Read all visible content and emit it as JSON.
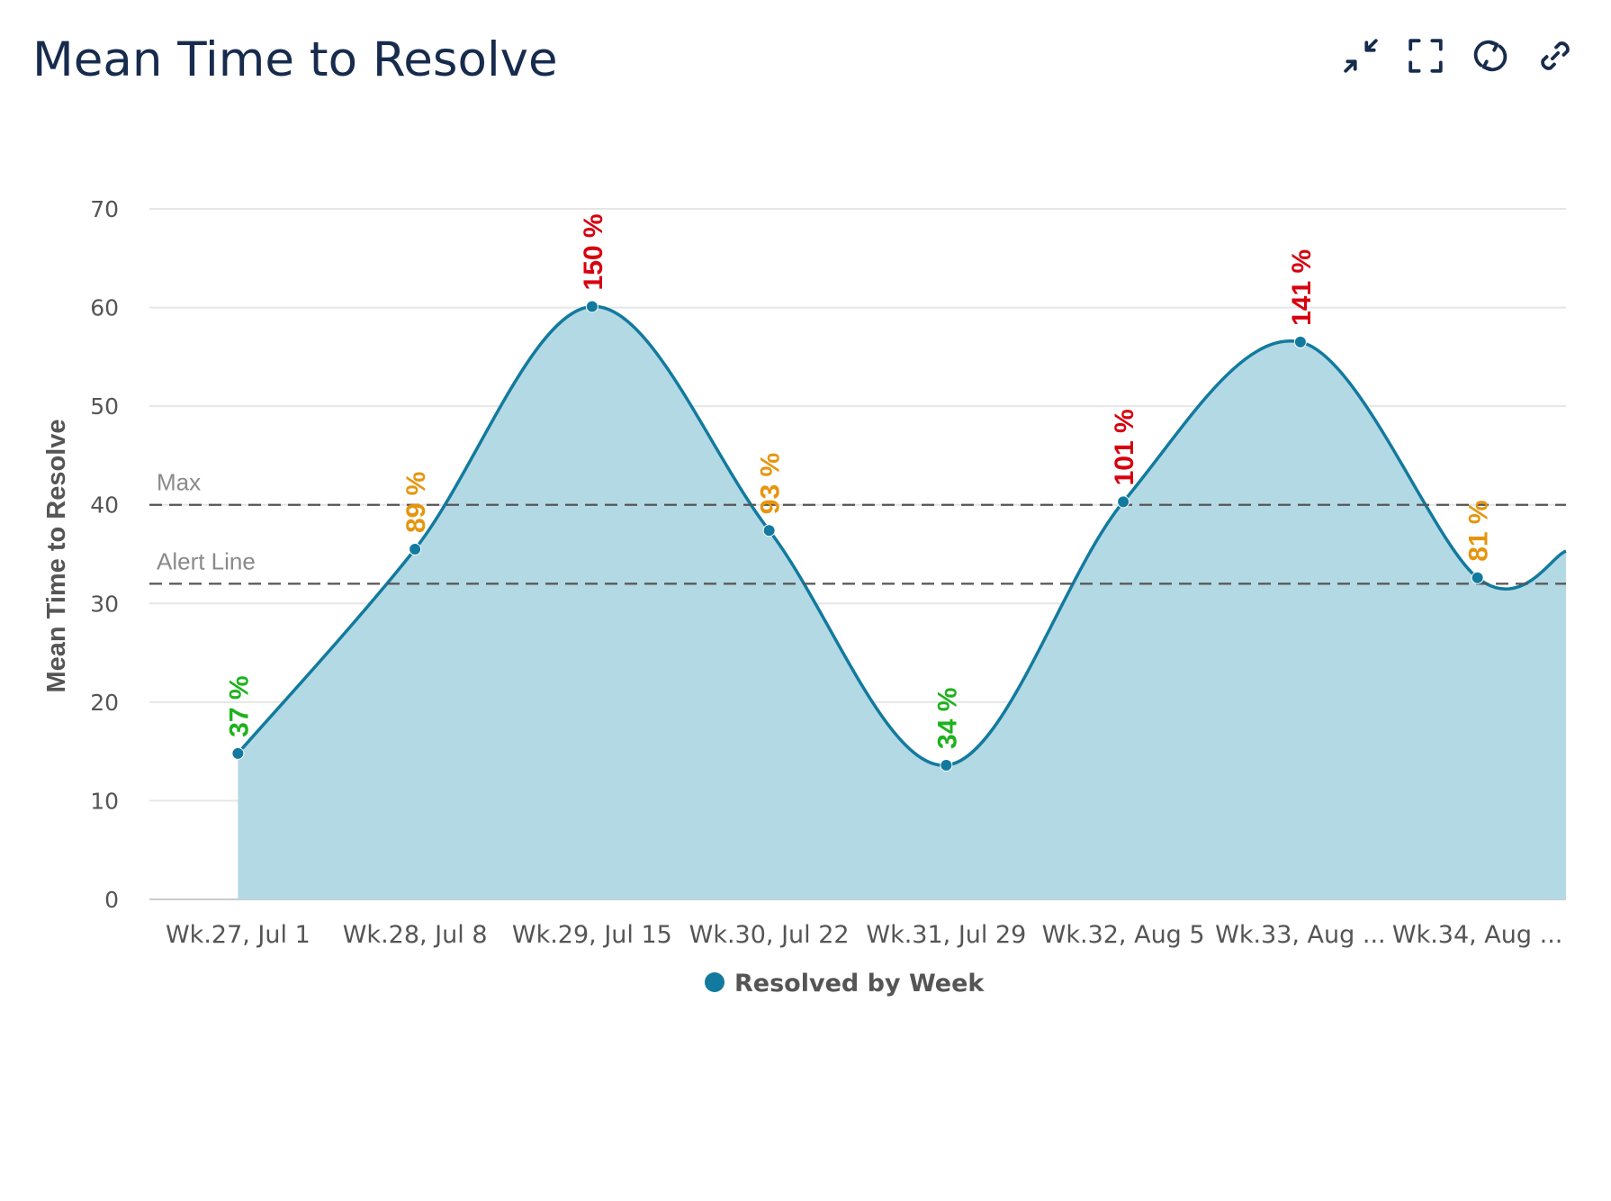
{
  "header": {
    "title": "Mean Time to Resolve"
  },
  "toolbar": {
    "buttons": [
      {
        "icon": "collapse-icon"
      },
      {
        "icon": "fullscreen-icon"
      },
      {
        "icon": "refresh-icon"
      },
      {
        "icon": "link-icon"
      }
    ]
  },
  "colors": {
    "series_line": "#127a9e",
    "series_fill": "#b3d9e4",
    "label_green": "#1db21d",
    "label_orange": "#e6950e",
    "label_red": "#d7000f",
    "reference_line": "#555555",
    "title": "#172b4d"
  },
  "chart_data": {
    "type": "area",
    "title": "",
    "xlabel": "",
    "ylabel": "Mean Time to Resolve",
    "ylim": [
      0,
      70
    ],
    "yticks": [
      0,
      10,
      20,
      30,
      40,
      50,
      60,
      70
    ],
    "grid": true,
    "categories": [
      "Wk.27, Jul 1",
      "Wk.28, Jul 8",
      "Wk.29, Jul 15",
      "Wk.30, Jul 22",
      "Wk.31, Jul 29",
      "Wk.32, Aug 5",
      "Wk.33, Aug ...",
      "Wk.34, Aug ..."
    ],
    "series": [
      {
        "name": "Resolved by Week",
        "values": [
          14.8,
          35.5,
          60.1,
          37.4,
          13.6,
          40.3,
          56.5,
          32.6
        ],
        "trailing_value": 35.3,
        "data_labels": [
          "37 %",
          "89 %",
          "150 %",
          "93 %",
          "34 %",
          "101 %",
          "141 %",
          "81 %"
        ],
        "label_levels": [
          "green",
          "orange",
          "red",
          "orange",
          "green",
          "red",
          "red",
          "orange"
        ]
      }
    ],
    "reference_lines": [
      {
        "label": "Max",
        "value": 40
      },
      {
        "label": "Alert Line",
        "value": 32
      }
    ],
    "legend": {
      "position": "bottom-center",
      "entries": [
        "Resolved by Week"
      ]
    }
  }
}
